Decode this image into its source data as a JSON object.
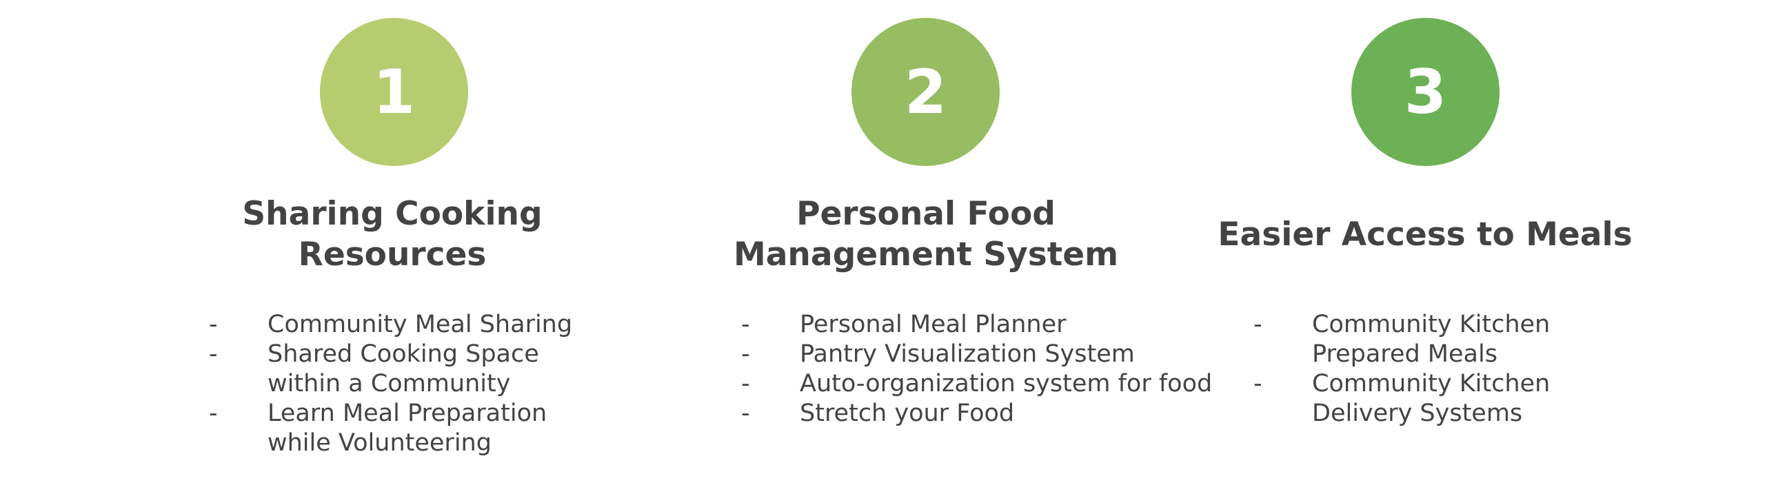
{
  "steps": [
    {
      "number": "1",
      "color": "#b5cd6f",
      "title_lines": [
        "Sharing Cooking",
        "Resources"
      ],
      "bullets": [
        {
          "lines": [
            "Community Meal Sharing"
          ]
        },
        {
          "lines": [
            "Shared Cooking Space",
            "within a Community"
          ]
        },
        {
          "lines": [
            "Learn Meal Preparation",
            "while Volunteering"
          ]
        }
      ]
    },
    {
      "number": "2",
      "color": "#97bd63",
      "title_lines": [
        "Personal Food",
        "Management System"
      ],
      "bullets": [
        {
          "lines": [
            "Personal Meal Planner"
          ]
        },
        {
          "lines": [
            "Pantry Visualization System"
          ]
        },
        {
          "lines": [
            "Auto-organization system for food"
          ]
        },
        {
          "lines": [
            "Stretch your Food"
          ]
        }
      ]
    },
    {
      "number": "3",
      "color": "#6cb155",
      "title_lines": [
        "Easier Access to Meals"
      ],
      "bullets": [
        {
          "lines": [
            "Community Kitchen",
            "Prepared Meals"
          ]
        },
        {
          "lines": [
            "Community Kitchen",
            "Delivery Systems"
          ]
        }
      ]
    }
  ],
  "bullet_marker": "-"
}
